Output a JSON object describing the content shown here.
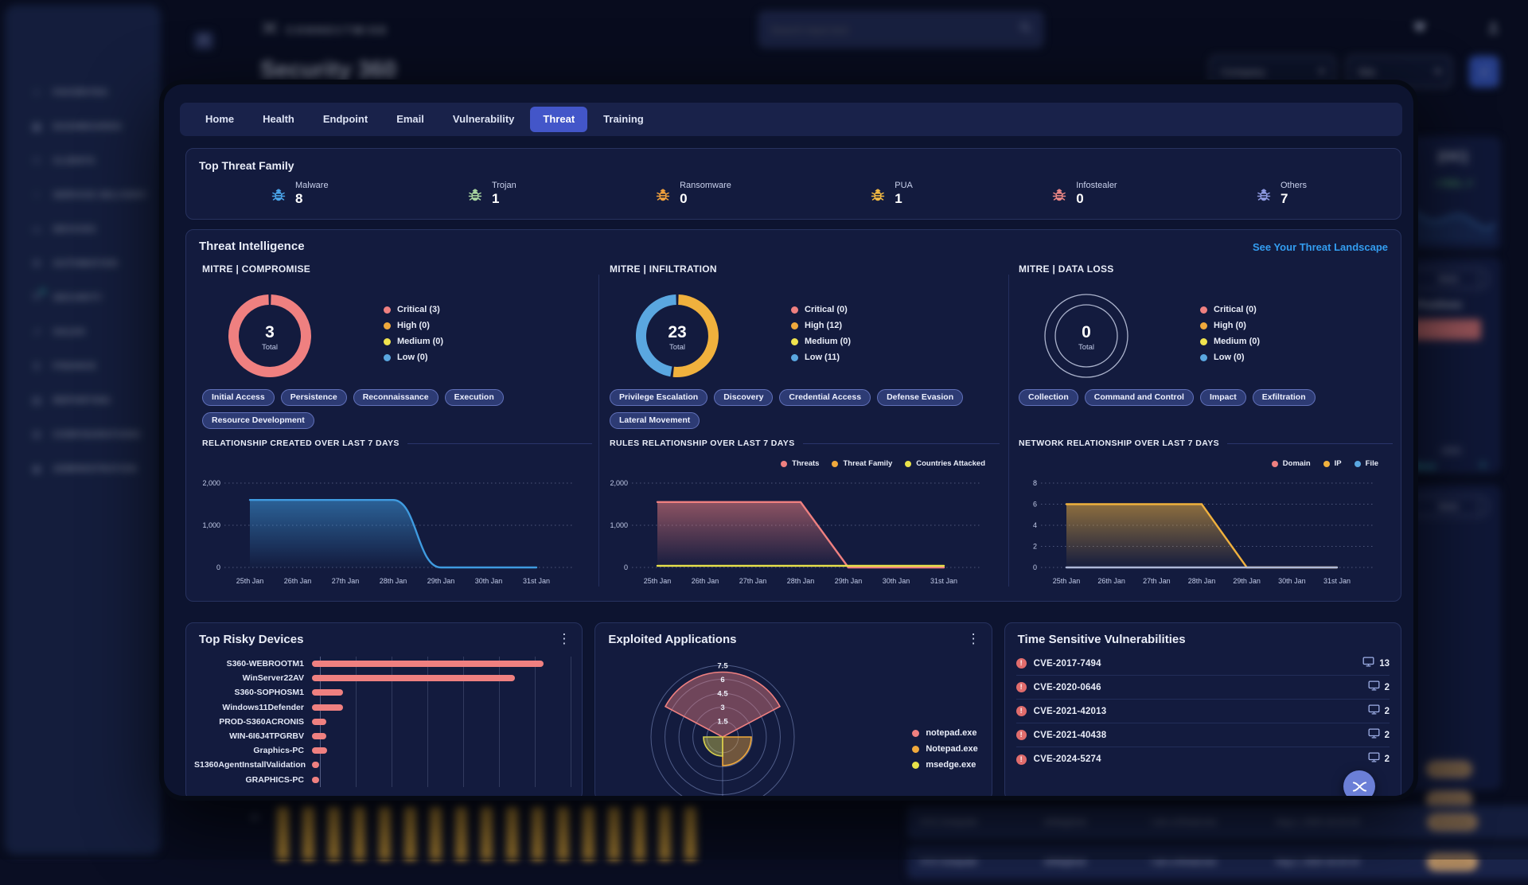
{
  "header": {
    "brand": "CONNECTWISE",
    "search_placeholder": "Search input text",
    "page_title": "Security 360",
    "filters": {
      "company": "Company",
      "site": "Site"
    }
  },
  "sidebar": {
    "items": [
      {
        "label": "FAVORITES",
        "icon": "star"
      },
      {
        "label": "DASHBOARDS",
        "icon": "grid"
      },
      {
        "label": "CLIENTS",
        "icon": "people"
      },
      {
        "label": "SERVICE DELIVERY",
        "icon": "tag"
      },
      {
        "label": "DEVICES",
        "icon": "monitor"
      },
      {
        "label": "AUTOMATION",
        "icon": "wrench"
      },
      {
        "label": "SECURITY",
        "icon": "shield",
        "badge_color": "#35d0c0"
      },
      {
        "label": "SALES",
        "icon": "chart"
      },
      {
        "label": "FINANCE",
        "icon": "dollar"
      },
      {
        "label": "REPORTING",
        "icon": "report"
      },
      {
        "label": "CONFIGURATIONS",
        "icon": "config"
      },
      {
        "label": "ADMINISTRATION",
        "icon": "admin"
      }
    ]
  },
  "modal": {
    "tabs": [
      "Home",
      "Health",
      "Endpoint",
      "Email",
      "Vulnerability",
      "Threat",
      "Training"
    ],
    "active_tab": "Threat",
    "top_threat_family": {
      "title": "Top Threat Family",
      "items": [
        {
          "label": "Malware",
          "count": "8",
          "color": "#4aa3e8"
        },
        {
          "label": "Trojan",
          "count": "1",
          "color": "#a8d5a0"
        },
        {
          "label": "Ransomware",
          "count": "0",
          "color": "#f0a03c"
        },
        {
          "label": "PUA",
          "count": "1",
          "color": "#f0b843"
        },
        {
          "label": "Infostealer",
          "count": "0",
          "color": "#e88585"
        },
        {
          "label": "Others",
          "count": "7",
          "color": "#8d99e0"
        }
      ]
    },
    "threat_intelligence": {
      "title": "Threat Intelligence",
      "link_label": "See Your Threat Landscape",
      "panels": [
        {
          "title": "MITRE | COMPROMISE",
          "donut": {
            "total": "3",
            "total_label": "Total",
            "segments": [
              {
                "name": "Critical",
                "value": 3,
                "color": "#ef8080"
              },
              {
                "name": "High",
                "value": 0,
                "color": "#f0a93c"
              },
              {
                "name": "Medium",
                "value": 0,
                "color": "#efe34e"
              },
              {
                "name": "Low",
                "value": 0,
                "color": "#5aa7e0"
              }
            ]
          },
          "legend": [
            {
              "label": "Critical (3)",
              "color": "#ef8080"
            },
            {
              "label": "High (0)",
              "color": "#f0a93c"
            },
            {
              "label": "Medium (0)",
              "color": "#efe34e"
            },
            {
              "label": "Low (0)",
              "color": "#5aa7e0"
            }
          ],
          "tags": [
            "Initial Access",
            "Persistence",
            "Reconnaissance",
            "Execution",
            "Resource Development"
          ],
          "chart": {
            "title": "RELATIONSHIP CREATED OVER LAST 7 DAYS",
            "type": "area",
            "x": [
              "25th Jan",
              "26th Jan",
              "27th Jan",
              "28th Jan",
              "29th Jan",
              "30th Jan",
              "31st Jan"
            ],
            "y_ticks": [
              "2,000",
              "1,000",
              "0"
            ],
            "y_max": 2000,
            "legend": [],
            "series": [
              {
                "color": "#3f9be0",
                "fill": true,
                "smooth": true,
                "values": [
                  1600,
                  1600,
                  1600,
                  1600,
                  0,
                  0,
                  0
                ]
              }
            ]
          }
        },
        {
          "title": "MITRE | INFILTRATION",
          "donut": {
            "total": "23",
            "total_label": "Total",
            "segments": [
              {
                "name": "Critical",
                "value": 0,
                "color": "#ef8080"
              },
              {
                "name": "High",
                "value": 12,
                "color": "#f0b13d"
              },
              {
                "name": "Medium",
                "value": 0,
                "color": "#efe34e"
              },
              {
                "name": "Low",
                "value": 11,
                "color": "#5aa7e0"
              }
            ]
          },
          "legend": [
            {
              "label": "Critical (0)",
              "color": "#ef8080"
            },
            {
              "label": "High (12)",
              "color": "#f0a93c"
            },
            {
              "label": "Medium (0)",
              "color": "#efe34e"
            },
            {
              "label": "Low (11)",
              "color": "#5aa7e0"
            }
          ],
          "tags": [
            "Privilege Escalation",
            "Discovery",
            "Credential Access",
            "Defense Evasion",
            "Lateral Movement"
          ],
          "chart": {
            "title": "RULES RELATIONSHIP OVER LAST 7 DAYS",
            "type": "area",
            "x": [
              "25th Jan",
              "26th Jan",
              "27th Jan",
              "28th Jan",
              "29th Jan",
              "30th Jan",
              "31st Jan"
            ],
            "y_ticks": [
              "2,000",
              "1,000",
              "0"
            ],
            "y_max": 2000,
            "legend": [
              {
                "label": "Threats",
                "color": "#ef8080"
              },
              {
                "label": "Threat Family",
                "color": "#f0a93c"
              },
              {
                "label": "Countries Attacked",
                "color": "#e8e24a"
              }
            ],
            "series": [
              {
                "color": "#ef8080",
                "fill": true,
                "smooth": false,
                "values": [
                  1550,
                  1550,
                  1550,
                  1550,
                  0,
                  0,
                  0
                ]
              },
              {
                "color": "#e8e24a",
                "fill": false,
                "smooth": false,
                "values": [
                  40,
                  40,
                  40,
                  40,
                  40,
                  40,
                  40
                ]
              }
            ]
          }
        },
        {
          "title": "MITRE | DATA LOSS",
          "donut": {
            "total": "0",
            "total_label": "Total",
            "segments": [
              {
                "name": "Critical",
                "value": 0,
                "color": "#ef8080"
              },
              {
                "name": "High",
                "value": 0,
                "color": "#f0a93c"
              },
              {
                "name": "Medium",
                "value": 0,
                "color": "#efe34e"
              },
              {
                "name": "Low",
                "value": 0,
                "color": "#5aa7e0"
              }
            ]
          },
          "legend": [
            {
              "label": "Critical (0)",
              "color": "#ef8080"
            },
            {
              "label": "High (0)",
              "color": "#f0a93c"
            },
            {
              "label": "Medium (0)",
              "color": "#efe34e"
            },
            {
              "label": "Low (0)",
              "color": "#5aa7e0"
            }
          ],
          "tags": [
            "Collection",
            "Command and Control",
            "Impact",
            "Exfiltration"
          ],
          "chart": {
            "title": "NETWORK RELATIONSHIP OVER LAST 7 DAYS",
            "type": "area",
            "x": [
              "25th Jan",
              "26th Jan",
              "27th Jan",
              "28th Jan",
              "29th Jan",
              "30th Jan",
              "31st Jan"
            ],
            "y_ticks": [
              "8",
              "6",
              "4",
              "2",
              "0"
            ],
            "y_max": 8,
            "legend": [
              {
                "label": "Domain",
                "color": "#ef8080"
              },
              {
                "label": "IP",
                "color": "#f0b13d"
              },
              {
                "label": "File",
                "color": "#5aa7e0"
              }
            ],
            "series": [
              {
                "color": "#f0b13d",
                "fill": true,
                "smooth": false,
                "values": [
                  6,
                  6,
                  6,
                  6,
                  0,
                  0,
                  0
                ]
              },
              {
                "color": "#aeb8d8",
                "fill": false,
                "smooth": false,
                "values": [
                  0,
                  0,
                  0,
                  0,
                  0,
                  0,
                  0
                ]
              }
            ]
          }
        }
      ]
    },
    "cards": [
      {
        "title": "Top Risky Devices",
        "menu": true,
        "bar_chart": {
          "type": "bar",
          "color": "#ef8080",
          "categories": [
            "S360-WEBROOTM1",
            "WinServer22AV",
            "S360-SOPHOSM1",
            "Windows11Defender",
            "PROD-S360ACRONIS",
            "WIN-6I6J4TPGRBV",
            "Graphics-PC",
            "S1360AgentInstallValidation",
            "GRAPHICS-PC"
          ],
          "values": [
            89,
            78,
            12,
            12,
            5.4,
            5.4,
            5.7,
            2.9,
            2.9
          ]
        }
      },
      {
        "title": "Exploited Applications",
        "menu": true,
        "radar": {
          "rings": [
            "7.5",
            "6",
            "4.5",
            "3",
            "1.5"
          ],
          "max": 7.5,
          "sectors": [
            {
              "name": "notepad.exe",
              "color": "#ef8080",
              "start": -62,
              "end": 62,
              "value": 6.8
            },
            {
              "name": "Notepad.exe",
              "color": "#f0a93c",
              "start": 90,
              "end": 180,
              "value": 3
            },
            {
              "name": "msedge.exe",
              "color": "#d6cf4e",
              "start": 180,
              "end": 270,
              "value": 2
            }
          ],
          "legend": [
            {
              "label": "notepad.exe",
              "color": "#ef8080"
            },
            {
              "label": "Notepad.exe",
              "color": "#f0a93c"
            },
            {
              "label": "msedge.exe",
              "color": "#e8e24a"
            }
          ]
        }
      },
      {
        "title": "Time Sensitive Vulnerabilities",
        "menu": false,
        "vulnerabilities": [
          {
            "id": "CVE-2017-7494",
            "devices": "13"
          },
          {
            "id": "CVE-2020-0646",
            "devices": "2"
          },
          {
            "id": "CVE-2021-42013",
            "devices": "2"
          },
          {
            "id": "CVE-2021-40438",
            "devices": "2"
          },
          {
            "id": "CVE-2024-5274",
            "devices": "2"
          }
        ]
      }
    ]
  },
  "background": {
    "right_rail": {
      "card1_text": "[OC]",
      "card1_delta": "+76%",
      "card2_button": "tives",
      "card2_label": "ue Positives",
      "card2_value": "2500",
      "card2_link": "w More",
      "card2_plus": "+",
      "card3_button": "tives",
      "side_badges": [
        "Unresolved",
        "Unresolved"
      ]
    },
    "bottom": {
      "axis_label": "10",
      "bar_count": 17,
      "rows": [
        {
          "device": "XYZ Computer",
          "user": "whiteghost",
          "file": "I am a threat.exe",
          "time": "Aug 1, 2020 16:23:15",
          "status": "Unresolved"
        },
        {
          "device": "XYZ Computer",
          "user": "whiteghost",
          "file": "I am a threat.exe",
          "time": "Aug 1, 2020 16:23:15",
          "status": "Unresolved"
        }
      ]
    }
  }
}
